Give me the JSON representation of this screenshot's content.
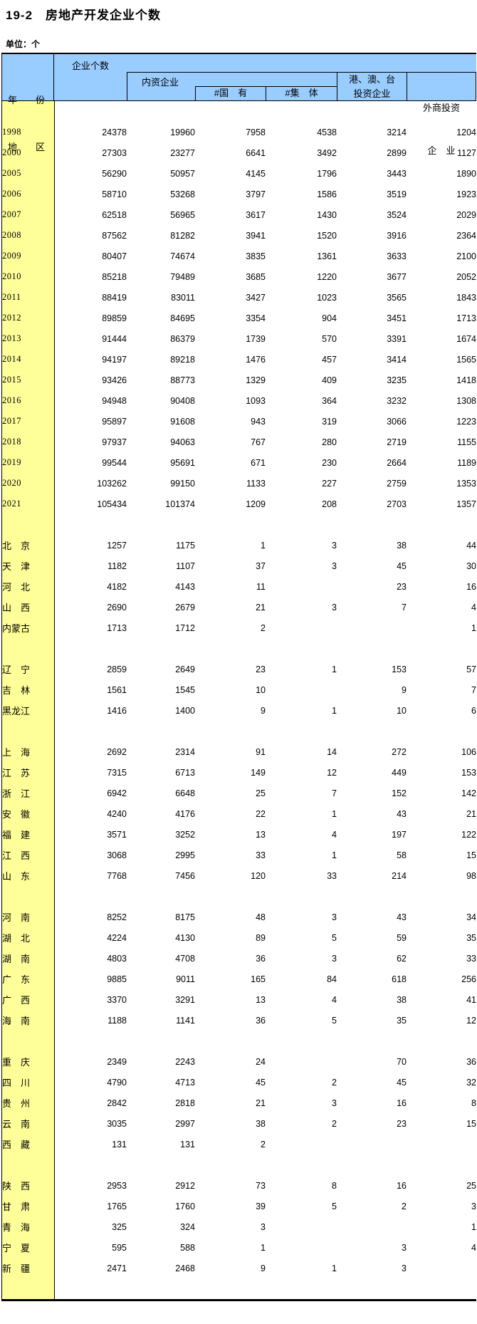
{
  "title": "19-2　房地产开发企业个数",
  "unit_label": "单位：个",
  "colors": {
    "header_bg": "#99CCFF",
    "stub_bg": "#FFFF99",
    "border": "#000000",
    "text": "#000000"
  },
  "table": {
    "header": {
      "stub_line1": "年　　份",
      "stub_line2": "地　　区",
      "col_total": "企业个数",
      "group_domestic": "内资企业",
      "sub_state_owned": "#国　有",
      "sub_collective": "#集　体",
      "hk_mo_tw_line1": "港、澳、台",
      "hk_mo_tw_line2": "投资企业",
      "foreign_line1": "外商投资",
      "foreign_line2": "企　业"
    },
    "rows": [
      {
        "t": "gap",
        "label": "",
        "v": [
          "",
          "",
          "",
          "",
          "",
          ""
        ]
      },
      {
        "t": "year",
        "label": "1998",
        "v": [
          "24378",
          "19960",
          "7958",
          "4538",
          "3214",
          "1204"
        ]
      },
      {
        "t": "year",
        "label": "2000",
        "v": [
          "27303",
          "23277",
          "6641",
          "3492",
          "2899",
          "1127"
        ]
      },
      {
        "t": "year",
        "label": "2005",
        "v": [
          "56290",
          "50957",
          "4145",
          "1796",
          "3443",
          "1890"
        ]
      },
      {
        "t": "year",
        "label": "2006",
        "v": [
          "58710",
          "53268",
          "3797",
          "1586",
          "3519",
          "1923"
        ]
      },
      {
        "t": "year",
        "label": "2007",
        "v": [
          "62518",
          "56965",
          "3617",
          "1430",
          "3524",
          "2029"
        ]
      },
      {
        "t": "year",
        "label": "2008",
        "v": [
          "87562",
          "81282",
          "3941",
          "1520",
          "3916",
          "2364"
        ]
      },
      {
        "t": "year",
        "label": "2009",
        "v": [
          "80407",
          "74674",
          "3835",
          "1361",
          "3633",
          "2100"
        ]
      },
      {
        "t": "year",
        "label": "2010",
        "v": [
          "85218",
          "79489",
          "3685",
          "1220",
          "3677",
          "2052"
        ]
      },
      {
        "t": "year",
        "label": "2011",
        "v": [
          "88419",
          "83011",
          "3427",
          "1023",
          "3565",
          "1843"
        ]
      },
      {
        "t": "year",
        "label": "2012",
        "v": [
          "89859",
          "84695",
          "3354",
          "904",
          "3451",
          "1713"
        ]
      },
      {
        "t": "year",
        "label": "2013",
        "v": [
          "91444",
          "86379",
          "1739",
          "570",
          "3391",
          "1674"
        ]
      },
      {
        "t": "year",
        "label": "2014",
        "v": [
          "94197",
          "89218",
          "1476",
          "457",
          "3414",
          "1565"
        ]
      },
      {
        "t": "year",
        "label": "2015",
        "v": [
          "93426",
          "88773",
          "1329",
          "409",
          "3235",
          "1418"
        ]
      },
      {
        "t": "year",
        "label": "2016",
        "v": [
          "94948",
          "90408",
          "1093",
          "364",
          "3232",
          "1308"
        ]
      },
      {
        "t": "year",
        "label": "2017",
        "v": [
          "95897",
          "91608",
          "943",
          "319",
          "3066",
          "1223"
        ]
      },
      {
        "t": "year",
        "label": "2018",
        "v": [
          "97937",
          "94063",
          "767",
          "280",
          "2719",
          "1155"
        ]
      },
      {
        "t": "year",
        "label": "2019",
        "v": [
          "99544",
          "95691",
          "671",
          "230",
          "2664",
          "1189"
        ]
      },
      {
        "t": "year",
        "label": "2020",
        "v": [
          "103262",
          "99150",
          "1133",
          "227",
          "2759",
          "1353"
        ]
      },
      {
        "t": "year",
        "label": "2021",
        "v": [
          "105434",
          "101374",
          "1209",
          "208",
          "2703",
          "1357"
        ]
      },
      {
        "t": "gap",
        "label": "",
        "v": [
          "",
          "",
          "",
          "",
          "",
          ""
        ]
      },
      {
        "t": "region",
        "label": "北　京",
        "v": [
          "1257",
          "1175",
          "1",
          "3",
          "38",
          "44"
        ]
      },
      {
        "t": "region",
        "label": "天　津",
        "v": [
          "1182",
          "1107",
          "37",
          "3",
          "45",
          "30"
        ]
      },
      {
        "t": "region",
        "label": "河　北",
        "v": [
          "4182",
          "4143",
          "11",
          "",
          "23",
          "16"
        ]
      },
      {
        "t": "region",
        "label": "山　西",
        "v": [
          "2690",
          "2679",
          "21",
          "3",
          "7",
          "4"
        ]
      },
      {
        "t": "region",
        "label": "内蒙古",
        "v": [
          "1713",
          "1712",
          "2",
          "",
          "",
          "1"
        ]
      },
      {
        "t": "gap",
        "label": "",
        "v": [
          "",
          "",
          "",
          "",
          "",
          ""
        ]
      },
      {
        "t": "region",
        "label": "辽　宁",
        "v": [
          "2859",
          "2649",
          "23",
          "1",
          "153",
          "57"
        ]
      },
      {
        "t": "region",
        "label": "吉　林",
        "v": [
          "1561",
          "1545",
          "10",
          "",
          "9",
          "7"
        ]
      },
      {
        "t": "region",
        "label": "黑龙江",
        "v": [
          "1416",
          "1400",
          "9",
          "1",
          "10",
          "6"
        ]
      },
      {
        "t": "gap",
        "label": "",
        "v": [
          "",
          "",
          "",
          "",
          "",
          ""
        ]
      },
      {
        "t": "region",
        "label": "上　海",
        "v": [
          "2692",
          "2314",
          "91",
          "14",
          "272",
          "106"
        ]
      },
      {
        "t": "region",
        "label": "江　苏",
        "v": [
          "7315",
          "6713",
          "149",
          "12",
          "449",
          "153"
        ]
      },
      {
        "t": "region",
        "label": "浙　江",
        "v": [
          "6942",
          "6648",
          "25",
          "7",
          "152",
          "142"
        ]
      },
      {
        "t": "region",
        "label": "安　徽",
        "v": [
          "4240",
          "4176",
          "22",
          "1",
          "43",
          "21"
        ]
      },
      {
        "t": "region",
        "label": "福　建",
        "v": [
          "3571",
          "3252",
          "13",
          "4",
          "197",
          "122"
        ]
      },
      {
        "t": "region",
        "label": "江　西",
        "v": [
          "3068",
          "2995",
          "33",
          "1",
          "58",
          "15"
        ]
      },
      {
        "t": "region",
        "label": "山　东",
        "v": [
          "7768",
          "7456",
          "120",
          "33",
          "214",
          "98"
        ]
      },
      {
        "t": "gap",
        "label": "",
        "v": [
          "",
          "",
          "",
          "",
          "",
          ""
        ]
      },
      {
        "t": "region",
        "label": "河　南",
        "v": [
          "8252",
          "8175",
          "48",
          "3",
          "43",
          "34"
        ]
      },
      {
        "t": "region",
        "label": "湖　北",
        "v": [
          "4224",
          "4130",
          "89",
          "5",
          "59",
          "35"
        ]
      },
      {
        "t": "region",
        "label": "湖　南",
        "v": [
          "4803",
          "4708",
          "36",
          "3",
          "62",
          "33"
        ]
      },
      {
        "t": "region",
        "label": "广　东",
        "v": [
          "9885",
          "9011",
          "165",
          "84",
          "618",
          "256"
        ]
      },
      {
        "t": "region",
        "label": "广　西",
        "v": [
          "3370",
          "3291",
          "13",
          "4",
          "38",
          "41"
        ]
      },
      {
        "t": "region",
        "label": "海　南",
        "v": [
          "1188",
          "1141",
          "36",
          "5",
          "35",
          "12"
        ]
      },
      {
        "t": "gap",
        "label": "",
        "v": [
          "",
          "",
          "",
          "",
          "",
          ""
        ]
      },
      {
        "t": "region",
        "label": "重　庆",
        "v": [
          "2349",
          "2243",
          "24",
          "",
          "70",
          "36"
        ]
      },
      {
        "t": "region",
        "label": "四　川",
        "v": [
          "4790",
          "4713",
          "45",
          "2",
          "45",
          "32"
        ]
      },
      {
        "t": "region",
        "label": "贵　州",
        "v": [
          "2842",
          "2818",
          "21",
          "3",
          "16",
          "8"
        ]
      },
      {
        "t": "region",
        "label": "云　南",
        "v": [
          "3035",
          "2997",
          "38",
          "2",
          "23",
          "15"
        ]
      },
      {
        "t": "region",
        "label": "西　藏",
        "v": [
          "131",
          "131",
          "2",
          "",
          "",
          ""
        ]
      },
      {
        "t": "gap",
        "label": "",
        "v": [
          "",
          "",
          "",
          "",
          "",
          ""
        ]
      },
      {
        "t": "region",
        "label": "陕　西",
        "v": [
          "2953",
          "2912",
          "73",
          "8",
          "16",
          "25"
        ]
      },
      {
        "t": "region",
        "label": "甘　肃",
        "v": [
          "1765",
          "1760",
          "39",
          "5",
          "2",
          "3"
        ]
      },
      {
        "t": "region",
        "label": "青　海",
        "v": [
          "325",
          "324",
          "3",
          "",
          "",
          "1"
        ]
      },
      {
        "t": "region",
        "label": "宁　夏",
        "v": [
          "595",
          "588",
          "1",
          "",
          "3",
          "4"
        ]
      },
      {
        "t": "region",
        "label": "新　疆",
        "v": [
          "2471",
          "2468",
          "9",
          "1",
          "3",
          ""
        ]
      },
      {
        "t": "gap",
        "label": "",
        "v": [
          "",
          "",
          "",
          "",
          "",
          ""
        ]
      }
    ]
  }
}
